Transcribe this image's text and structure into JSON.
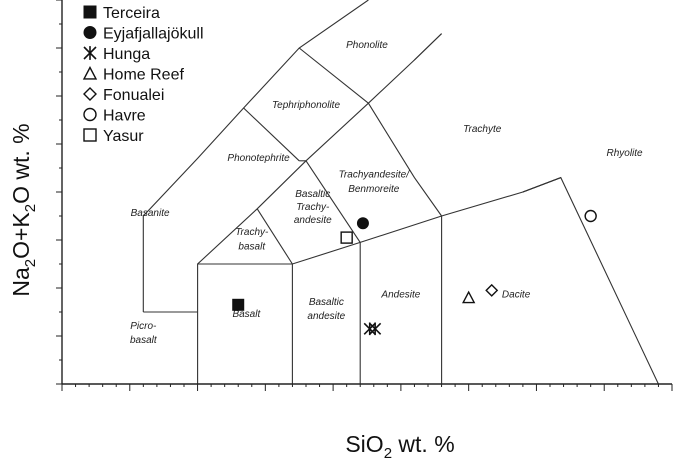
{
  "chart_data": {
    "type": "scatter",
    "xlabel": "SiO2 wt. %",
    "ylabel": "Na2O+K2O wt. %",
    "xlim": [
      35,
      80
    ],
    "ylim": [
      0,
      16
    ],
    "grid": false,
    "legend_position": "top-left",
    "series": [
      {
        "name": "Terceira",
        "marker": "filled-square",
        "points": [
          [
            48.0,
            3.3
          ]
        ]
      },
      {
        "name": "Eyjafjallajökull",
        "marker": "filled-circle",
        "points": [
          [
            57.2,
            6.7
          ]
        ]
      },
      {
        "name": "Hunga",
        "marker": "asterisk",
        "points": [
          [
            57.7,
            2.3
          ],
          [
            58.1,
            2.3
          ]
        ]
      },
      {
        "name": "Home Reef",
        "marker": "open-triangle",
        "points": [
          [
            65.0,
            3.6
          ]
        ]
      },
      {
        "name": "Fonualei",
        "marker": "open-diamond",
        "points": [
          [
            66.7,
            3.9
          ]
        ]
      },
      {
        "name": "Havre",
        "marker": "open-circle",
        "points": [
          [
            74.0,
            7.0
          ]
        ]
      },
      {
        "name": "Yasur",
        "marker": "open-square",
        "points": [
          [
            56.0,
            6.1
          ]
        ]
      }
    ],
    "fields": [
      {
        "name": "Phonolite",
        "at": [
          57.5,
          14.0
        ]
      },
      {
        "name": "Tephriphonolite",
        "at": [
          53.0,
          11.5
        ]
      },
      {
        "name": "Trachyte",
        "at": [
          66.0,
          10.5
        ]
      },
      {
        "name": "Rhyolite",
        "at": [
          76.5,
          9.5
        ]
      },
      {
        "name": "Phonotephrite",
        "at": [
          49.5,
          9.3
        ]
      },
      {
        "name": "Trachyandesite/",
        "at": [
          58.0,
          8.6
        ]
      },
      {
        "name": "Benmoreite",
        "at": [
          58.0,
          8.0
        ]
      },
      {
        "name": "Basaltic",
        "at": [
          53.5,
          7.8
        ]
      },
      {
        "name": "Trachy-",
        "at": [
          53.5,
          7.25
        ]
      },
      {
        "name": "andesite",
        "at": [
          53.5,
          6.7
        ]
      },
      {
        "name": "Basanite",
        "at": [
          41.5,
          7.0
        ]
      },
      {
        "name": "Trachy-",
        "at": [
          49.0,
          6.2
        ]
      },
      {
        "name": "basalt",
        "at": [
          49.0,
          5.6
        ]
      },
      {
        "name": "Andesite",
        "at": [
          60.0,
          3.6
        ]
      },
      {
        "name": "Dacite",
        "at": [
          68.5,
          3.6
        ]
      },
      {
        "name": "Basaltic",
        "at": [
          54.5,
          3.3
        ]
      },
      {
        "name": "andesite",
        "at": [
          54.5,
          2.7
        ]
      },
      {
        "name": "Basalt",
        "at": [
          48.6,
          2.8
        ]
      },
      {
        "name": "Picro-",
        "at": [
          41.0,
          2.3
        ]
      },
      {
        "name": "basalt",
        "at": [
          41.0,
          1.7
        ]
      }
    ],
    "boundaries": [
      [
        [
          41,
          3
        ],
        [
          41,
          7
        ],
        [
          45,
          9.4
        ],
        [
          48.4,
          11.5
        ],
        [
          52.5,
          14
        ],
        [
          57.6,
          16.0
        ]
      ],
      [
        [
          41,
          3
        ],
        [
          45,
          3
        ]
      ],
      [
        [
          45,
          0
        ],
        [
          45,
          5
        ],
        [
          49.4,
          7.3
        ],
        [
          53,
          9.3
        ],
        [
          57.6,
          11.7
        ],
        [
          61,
          13.5
        ],
        [
          63,
          14.6
        ]
      ],
      [
        [
          45,
          5
        ],
        [
          52,
          5
        ],
        [
          57,
          5.9
        ],
        [
          63,
          7
        ],
        [
          69,
          8
        ],
        [
          71.8,
          8.6
        ]
      ],
      [
        [
          52,
          0
        ],
        [
          52,
          5
        ]
      ],
      [
        [
          57,
          0
        ],
        [
          57,
          5.9
        ]
      ],
      [
        [
          63,
          0
        ],
        [
          63,
          7
        ]
      ],
      [
        [
          49.4,
          7.3
        ],
        [
          52,
          5
        ]
      ],
      [
        [
          53,
          9.3
        ],
        [
          57,
          5.9
        ]
      ],
      [
        [
          48.4,
          11.5
        ],
        [
          52.5,
          9.3
        ]
      ],
      [
        [
          52.5,
          9.3
        ],
        [
          53,
          9.3
        ]
      ],
      [
        [
          57.6,
          11.7
        ],
        [
          61.0,
          8.6
        ],
        [
          63,
          7
        ]
      ],
      [
        [
          52.5,
          14
        ],
        [
          57.6,
          11.7
        ]
      ],
      [
        [
          69,
          8
        ],
        [
          71.8,
          8.6
        ],
        [
          79,
          0
        ]
      ],
      [
        [
          71.8,
          8.6
        ],
        [
          69,
          8
        ]
      ],
      [
        [
          61,
          13.5
        ],
        [
          63,
          14.6
        ]
      ]
    ]
  }
}
